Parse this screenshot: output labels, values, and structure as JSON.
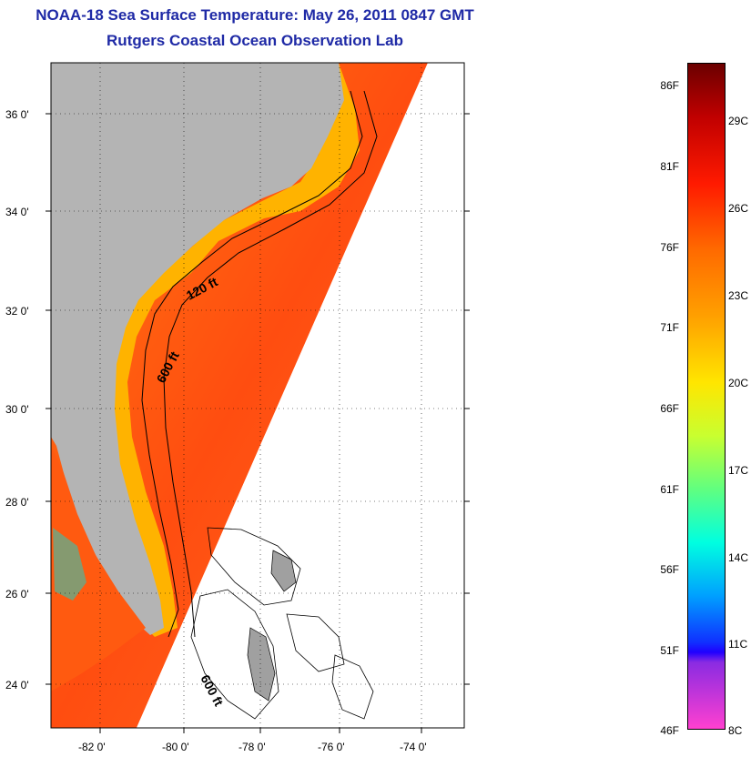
{
  "title": {
    "line1": "NOAA-18 Sea Surface Temperature:  May 26, 2011 0847 GMT",
    "line2": "Rutgers Coastal Ocean Observation Lab"
  },
  "map": {
    "lat_labels": [
      "36 0'",
      "34 0'",
      "32 0'",
      "30 0'",
      "28 0'",
      "26 0'",
      "24 0'"
    ],
    "lon_labels": [
      "-82 0'",
      "-80 0'",
      "-78 0'",
      "-76 0'",
      "-74 0'"
    ],
    "contour_labels": [
      "120 ft",
      "600 ft",
      "600 ft"
    ],
    "colors": {
      "land": "#b4b4b4",
      "ocean_warm": "#ff5a10",
      "ocean_coastal": "#ffb000",
      "no_data": "#ffffff"
    }
  },
  "colorbar": {
    "fahrenheit_labels": [
      "86F",
      "81F",
      "76F",
      "71F",
      "66F",
      "61F",
      "56F",
      "51F",
      "46F"
    ],
    "celsius_labels": [
      "29C",
      "26C",
      "23C",
      "20C",
      "17C",
      "14C",
      "11C",
      "8C"
    ]
  }
}
